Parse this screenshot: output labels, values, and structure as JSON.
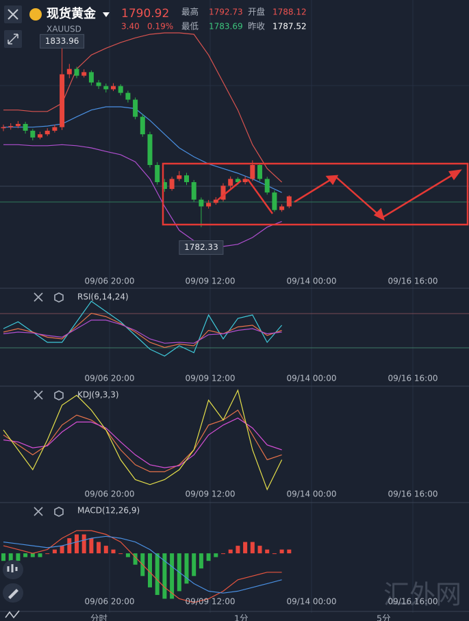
{
  "header": {
    "name": "现货黄金",
    "symbol": "XAUUSD",
    "price": "1790.92",
    "change": "3.40",
    "change_pct": "0.19%",
    "high_label": "最高",
    "high": "1792.73",
    "open_label": "开盘",
    "open": "1788.12",
    "low_label": "最低",
    "low": "1783.69",
    "prev_label": "昨收",
    "prev": "1787.52"
  },
  "time_labels": [
    "09/06 20:00",
    "09/09 12:00",
    "09/14 00:00",
    "09/16 16:00"
  ],
  "price_chart": {
    "type": "candlestick",
    "candles": [
      [
        1810.0,
        1811.0,
        1809.2,
        1810.3
      ],
      [
        1810.3,
        1811.4,
        1809.6,
        1810.6
      ],
      [
        1810.6,
        1812.0,
        1810.0,
        1811.2
      ],
      [
        1811.2,
        1811.8,
        1808.5,
        1809.3
      ],
      [
        1809.3,
        1809.8,
        1806.6,
        1807.4
      ],
      [
        1807.4,
        1809.0,
        1806.9,
        1808.3
      ],
      [
        1808.3,
        1810.0,
        1807.8,
        1809.3
      ],
      [
        1809.3,
        1811.0,
        1808.8,
        1810.3
      ],
      [
        1810.3,
        1833.96,
        1809.5,
        1825.1
      ],
      [
        1825.1,
        1828.0,
        1824.0,
        1826.6
      ],
      [
        1826.6,
        1827.2,
        1824.0,
        1824.7
      ],
      [
        1824.7,
        1826.5,
        1824.2,
        1825.7
      ],
      [
        1825.7,
        1826.2,
        1822.0,
        1822.8
      ],
      [
        1822.8,
        1823.5,
        1821.0,
        1821.8
      ],
      [
        1821.8,
        1822.5,
        1820.0,
        1820.9
      ],
      [
        1820.9,
        1822.6,
        1820.4,
        1821.8
      ],
      [
        1821.8,
        1822.3,
        1819.2,
        1819.9
      ],
      [
        1819.9,
        1820.5,
        1817.2,
        1818.0
      ],
      [
        1818.0,
        1818.6,
        1812.5,
        1813.2
      ],
      [
        1813.2,
        1814.0,
        1807.6,
        1808.3
      ],
      [
        1808.3,
        1809.0,
        1799.0,
        1799.7
      ],
      [
        1799.7,
        1800.5,
        1794.2,
        1794.9
      ],
      [
        1794.9,
        1795.8,
        1792.2,
        1793.0
      ],
      [
        1793.0,
        1796.4,
        1792.5,
        1795.8
      ],
      [
        1795.8,
        1798.0,
        1795.2,
        1796.8
      ],
      [
        1796.8,
        1797.5,
        1794.1,
        1794.9
      ],
      [
        1794.9,
        1795.5,
        1789.4,
        1790.0
      ],
      [
        1790.0,
        1790.6,
        1782.33,
        1788.1
      ],
      [
        1788.1,
        1789.9,
        1787.5,
        1789.1
      ],
      [
        1789.1,
        1790.7,
        1788.6,
        1790.0
      ],
      [
        1790.0,
        1794.6,
        1789.5,
        1793.9
      ],
      [
        1793.9,
        1796.5,
        1793.2,
        1795.8
      ],
      [
        1795.8,
        1796.3,
        1794.2,
        1794.9
      ],
      [
        1794.9,
        1796.5,
        1794.3,
        1795.8
      ],
      [
        1795.8,
        1801.0,
        1795.2,
        1799.7
      ],
      [
        1799.7,
        1800.2,
        1795.2,
        1795.8
      ],
      [
        1795.8,
        1796.4,
        1791.4,
        1792.0
      ],
      [
        1792.0,
        1792.6,
        1786.6,
        1787.1
      ],
      [
        1787.1,
        1788.7,
        1786.6,
        1788.1
      ],
      [
        1788.1,
        1791.2,
        1787.6,
        1790.92
      ]
    ],
    "series": [
      {
        "color": "#d9534f",
        "values": [
          1815.1,
          1815.1,
          1814.7,
          1814.7,
          1817.0,
          1826.6,
          1830.5,
          1832.4,
          1834.0,
          1835.3,
          1836.3,
          1836.7,
          1836.7,
          1836.3,
          1830.5,
          1822.8,
          1815.1,
          1805.4,
          1798.7,
          1794.9
        ]
      },
      {
        "color": "#4a90e2",
        "values": [
          1810.3,
          1810.3,
          1810.3,
          1810.6,
          1811.2,
          1813.2,
          1815.1,
          1816.0,
          1816.0,
          1815.5,
          1812.2,
          1808.3,
          1804.5,
          1802.0,
          1800.0,
          1798.7,
          1797.4,
          1795.8,
          1793.9,
          1792.0
        ]
      },
      {
        "color": "#b04fd0",
        "values": [
          1805.4,
          1805.4,
          1805.1,
          1805.1,
          1805.4,
          1805.1,
          1804.5,
          1803.5,
          1802.6,
          1800.6,
          1795.8,
          1788.1,
          1781.4,
          1778.5,
          1776.5,
          1776.9,
          1777.5,
          1779.4,
          1782.3,
          1783.9
        ]
      }
    ]
  },
  "rsi": {
    "title": "RSI(6,14,24)",
    "series": [
      {
        "color": "#3fc8d8",
        "values": [
          52,
          60,
          48,
          36,
          36,
          60,
          84,
          72,
          60,
          44,
          28,
          20,
          32,
          24,
          68,
          40,
          64,
          68,
          36,
          56
        ]
      },
      {
        "color": "#e8734a",
        "values": [
          48,
          52,
          48,
          42,
          40,
          55,
          70,
          66,
          58,
          48,
          36,
          30,
          34,
          32,
          50,
          46,
          54,
          56,
          44,
          50
        ]
      },
      {
        "color": "#b04fd0",
        "values": [
          46,
          48,
          47,
          44,
          42,
          52,
          62,
          62,
          57,
          50,
          40,
          35,
          36,
          35,
          45,
          46,
          50,
          52,
          46,
          48
        ]
      }
    ]
  },
  "kdj": {
    "title": "KDJ(9,3,3)",
    "series": [
      {
        "color": "#e8734a",
        "values": [
          55,
          45,
          35,
          45,
          65,
          75,
          70,
          60,
          40,
          25,
          18,
          18,
          25,
          40,
          65,
          70,
          80,
          55,
          30,
          35
        ]
      },
      {
        "color": "#d64fd6",
        "values": [
          50,
          48,
          42,
          44,
          58,
          68,
          68,
          62,
          48,
          35,
          25,
          22,
          24,
          35,
          55,
          65,
          72,
          62,
          45,
          40
        ]
      },
      {
        "color": "#e6e04a",
        "values": [
          60,
          40,
          20,
          50,
          85,
          95,
          80,
          60,
          30,
          10,
          5,
          10,
          20,
          40,
          90,
          70,
          100,
          40,
          0,
          30
        ]
      }
    ]
  },
  "macd": {
    "title": "MACD(12,26,9)",
    "hist": [
      -2,
      -2,
      -2,
      -1,
      -1,
      -1,
      0,
      1,
      2,
      4,
      5,
      5,
      4,
      3,
      2,
      1,
      0,
      -1,
      -3,
      -6,
      -9,
      -11,
      -12,
      -12,
      -10,
      -8,
      -6,
      -4,
      -2,
      -1,
      0,
      1,
      2,
      3,
      3,
      2,
      1,
      0,
      1,
      1
    ],
    "series": [
      {
        "color": "#e8553f",
        "values": [
          2,
          1,
          0,
          1,
          4,
          6,
          6,
          5,
          3,
          -1,
          -5,
          -9,
          -12,
          -13,
          -12,
          -10,
          -7,
          -6,
          -5,
          -5
        ]
      },
      {
        "color": "#4a90e2",
        "values": [
          3,
          2.5,
          2,
          1.5,
          2,
          3,
          4,
          4.5,
          4,
          3,
          1,
          -2,
          -5,
          -8,
          -10,
          -10.5,
          -10,
          -9,
          -8,
          -7
        ]
      }
    ]
  },
  "tabs": [
    "分时",
    "1分",
    "5分"
  ],
  "watermark": "汇外网"
}
